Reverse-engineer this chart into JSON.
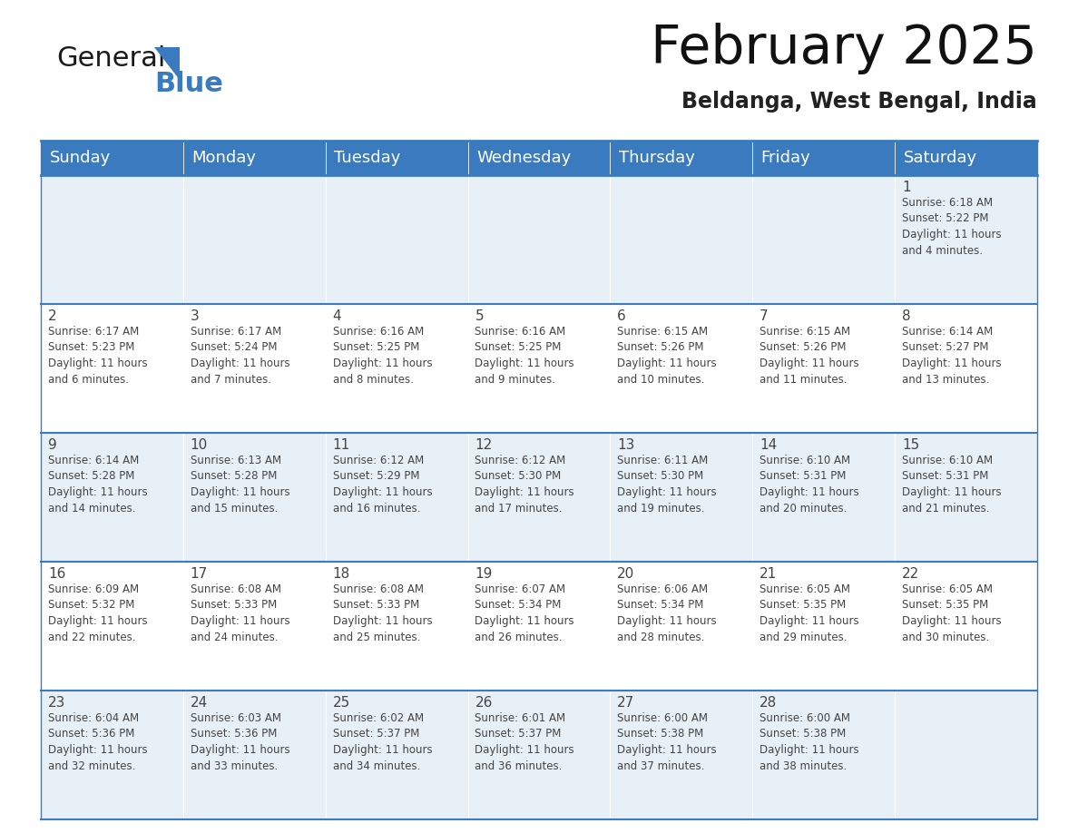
{
  "title": "February 2025",
  "subtitle": "Beldanga, West Bengal, India",
  "header_bg": "#3a7bbf",
  "header_text_color": "#ffffff",
  "cell_bg_even": "#e8f0f7",
  "cell_bg_odd": "#ffffff",
  "border_color": "#3a7bbf",
  "grid_line_color": "#3a7bbf",
  "text_color": "#444444",
  "days_of_week": [
    "Sunday",
    "Monday",
    "Tuesday",
    "Wednesday",
    "Thursday",
    "Friday",
    "Saturday"
  ],
  "calendar_data": [
    [
      {
        "day": "",
        "info": ""
      },
      {
        "day": "",
        "info": ""
      },
      {
        "day": "",
        "info": ""
      },
      {
        "day": "",
        "info": ""
      },
      {
        "day": "",
        "info": ""
      },
      {
        "day": "",
        "info": ""
      },
      {
        "day": "1",
        "info": "Sunrise: 6:18 AM\nSunset: 5:22 PM\nDaylight: 11 hours\nand 4 minutes."
      }
    ],
    [
      {
        "day": "2",
        "info": "Sunrise: 6:17 AM\nSunset: 5:23 PM\nDaylight: 11 hours\nand 6 minutes."
      },
      {
        "day": "3",
        "info": "Sunrise: 6:17 AM\nSunset: 5:24 PM\nDaylight: 11 hours\nand 7 minutes."
      },
      {
        "day": "4",
        "info": "Sunrise: 6:16 AM\nSunset: 5:25 PM\nDaylight: 11 hours\nand 8 minutes."
      },
      {
        "day": "5",
        "info": "Sunrise: 6:16 AM\nSunset: 5:25 PM\nDaylight: 11 hours\nand 9 minutes."
      },
      {
        "day": "6",
        "info": "Sunrise: 6:15 AM\nSunset: 5:26 PM\nDaylight: 11 hours\nand 10 minutes."
      },
      {
        "day": "7",
        "info": "Sunrise: 6:15 AM\nSunset: 5:26 PM\nDaylight: 11 hours\nand 11 minutes."
      },
      {
        "day": "8",
        "info": "Sunrise: 6:14 AM\nSunset: 5:27 PM\nDaylight: 11 hours\nand 13 minutes."
      }
    ],
    [
      {
        "day": "9",
        "info": "Sunrise: 6:14 AM\nSunset: 5:28 PM\nDaylight: 11 hours\nand 14 minutes."
      },
      {
        "day": "10",
        "info": "Sunrise: 6:13 AM\nSunset: 5:28 PM\nDaylight: 11 hours\nand 15 minutes."
      },
      {
        "day": "11",
        "info": "Sunrise: 6:12 AM\nSunset: 5:29 PM\nDaylight: 11 hours\nand 16 minutes."
      },
      {
        "day": "12",
        "info": "Sunrise: 6:12 AM\nSunset: 5:30 PM\nDaylight: 11 hours\nand 17 minutes."
      },
      {
        "day": "13",
        "info": "Sunrise: 6:11 AM\nSunset: 5:30 PM\nDaylight: 11 hours\nand 19 minutes."
      },
      {
        "day": "14",
        "info": "Sunrise: 6:10 AM\nSunset: 5:31 PM\nDaylight: 11 hours\nand 20 minutes."
      },
      {
        "day": "15",
        "info": "Sunrise: 6:10 AM\nSunset: 5:31 PM\nDaylight: 11 hours\nand 21 minutes."
      }
    ],
    [
      {
        "day": "16",
        "info": "Sunrise: 6:09 AM\nSunset: 5:32 PM\nDaylight: 11 hours\nand 22 minutes."
      },
      {
        "day": "17",
        "info": "Sunrise: 6:08 AM\nSunset: 5:33 PM\nDaylight: 11 hours\nand 24 minutes."
      },
      {
        "day": "18",
        "info": "Sunrise: 6:08 AM\nSunset: 5:33 PM\nDaylight: 11 hours\nand 25 minutes."
      },
      {
        "day": "19",
        "info": "Sunrise: 6:07 AM\nSunset: 5:34 PM\nDaylight: 11 hours\nand 26 minutes."
      },
      {
        "day": "20",
        "info": "Sunrise: 6:06 AM\nSunset: 5:34 PM\nDaylight: 11 hours\nand 28 minutes."
      },
      {
        "day": "21",
        "info": "Sunrise: 6:05 AM\nSunset: 5:35 PM\nDaylight: 11 hours\nand 29 minutes."
      },
      {
        "day": "22",
        "info": "Sunrise: 6:05 AM\nSunset: 5:35 PM\nDaylight: 11 hours\nand 30 minutes."
      }
    ],
    [
      {
        "day": "23",
        "info": "Sunrise: 6:04 AM\nSunset: 5:36 PM\nDaylight: 11 hours\nand 32 minutes."
      },
      {
        "day": "24",
        "info": "Sunrise: 6:03 AM\nSunset: 5:36 PM\nDaylight: 11 hours\nand 33 minutes."
      },
      {
        "day": "25",
        "info": "Sunrise: 6:02 AM\nSunset: 5:37 PM\nDaylight: 11 hours\nand 34 minutes."
      },
      {
        "day": "26",
        "info": "Sunrise: 6:01 AM\nSunset: 5:37 PM\nDaylight: 11 hours\nand 36 minutes."
      },
      {
        "day": "27",
        "info": "Sunrise: 6:00 AM\nSunset: 5:38 PM\nDaylight: 11 hours\nand 37 minutes."
      },
      {
        "day": "28",
        "info": "Sunrise: 6:00 AM\nSunset: 5:38 PM\nDaylight: 11 hours\nand 38 minutes."
      },
      {
        "day": "",
        "info": ""
      }
    ]
  ],
  "logo_text1": "General",
  "logo_text2": "Blue",
  "logo_color1": "#1a1a1a",
  "logo_color2": "#3a7bbf",
  "title_fontsize": 42,
  "subtitle_fontsize": 17,
  "header_fontsize": 13,
  "day_num_fontsize": 11,
  "info_fontsize": 8.5
}
